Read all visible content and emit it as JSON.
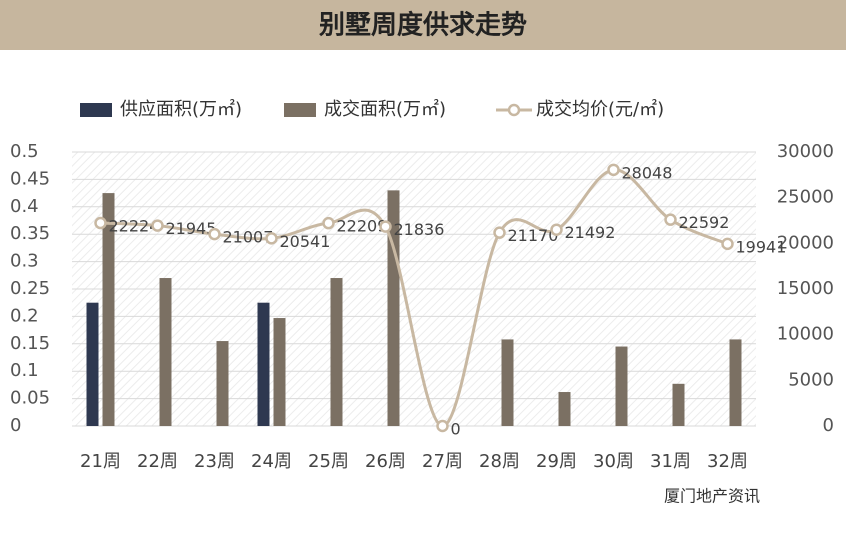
{
  "chart_data": {
    "type": "bar-line",
    "title": "别墅周度供求走势",
    "categories": [
      "21周",
      "22周",
      "23周",
      "24周",
      "25周",
      "26周",
      "27周",
      "28周",
      "29周",
      "30周",
      "31周",
      "32周"
    ],
    "series": [
      {
        "name": "供应面积(万㎡)",
        "type": "bar",
        "color": "#2e3850",
        "values": [
          0.225,
          null,
          null,
          0.225,
          null,
          null,
          null,
          null,
          null,
          null,
          null,
          null
        ]
      },
      {
        "name": "成交面积(万㎡)",
        "type": "bar",
        "color": "#7b7063",
        "values": [
          0.425,
          0.27,
          0.155,
          0.197,
          0.27,
          0.43,
          null,
          0.158,
          0.062,
          0.145,
          0.077,
          0.158
        ]
      },
      {
        "name": "成交均价(元/㎡)",
        "type": "line",
        "axis": "y2",
        "color": "#c8b8a2",
        "values": [
          22224,
          21945,
          21007,
          20541,
          22209,
          21836,
          0,
          21170,
          21492,
          28048,
          22592,
          19941
        ]
      }
    ],
    "ylim": [
      0,
      0.5
    ],
    "yticks": [
      0,
      0.05,
      0.1,
      0.15,
      0.2,
      0.25,
      0.3,
      0.35,
      0.4,
      0.45,
      0.5
    ],
    "y2lim": [
      0,
      30000
    ],
    "y2ticks": [
      0,
      5000,
      10000,
      15000,
      20000,
      25000,
      30000
    ],
    "grid": true,
    "legend": "top",
    "watermark": "厦门地产资讯"
  }
}
